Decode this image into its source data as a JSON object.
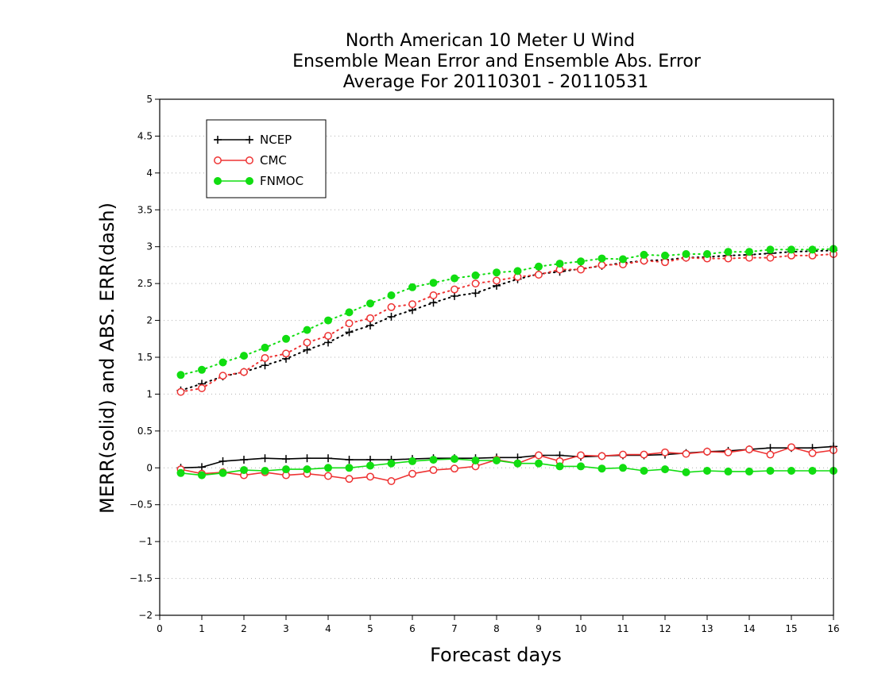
{
  "chart_data": {
    "type": "line",
    "title_lines": [
      "North American 10 Meter U Wind",
      "Ensemble Mean Error and Ensemble Abs. Error",
      "Average For 20110301 - 20110531"
    ],
    "xlabel": "Forecast days",
    "ylabel": "MERR(solid) and ABS. ERR(dash)",
    "xlim": [
      0,
      16
    ],
    "ylim": [
      -2,
      5
    ],
    "xticks": [
      0,
      1,
      2,
      3,
      4,
      5,
      6,
      7,
      8,
      9,
      10,
      11,
      12,
      13,
      14,
      15,
      16
    ],
    "xtick_labels": [
      "0",
      "1",
      "2",
      "3",
      "4",
      "5",
      "6",
      "7",
      "8",
      "9",
      "10",
      "11",
      "12",
      "13",
      "14",
      "15",
      "16"
    ],
    "yticks": [
      -2,
      -1.5,
      -1,
      -0.5,
      0,
      0.5,
      1,
      1.5,
      2,
      2.5,
      3,
      3.5,
      4,
      4.5,
      5
    ],
    "ytick_labels": [
      "−2",
      "−1.5",
      "−1",
      "−0.5",
      "0",
      "0.5",
      "1",
      "1.5",
      "2",
      "2.5",
      "3",
      "3.5",
      "4",
      "4.5",
      "5"
    ],
    "grid": true,
    "legend_position": "top-left",
    "x": [
      0.5,
      1,
      1.5,
      2,
      2.5,
      3,
      3.5,
      4,
      4.5,
      5,
      5.5,
      6,
      6.5,
      7,
      7.5,
      8,
      8.5,
      9,
      9.5,
      10,
      10.5,
      11,
      11.5,
      12,
      12.5,
      13,
      13.5,
      14,
      14.5,
      15,
      15.5,
      16
    ],
    "series": [
      {
        "name": "NCEP",
        "color": "#000000",
        "marker": "plus",
        "merr": [
          0.0,
          0.01,
          0.09,
          0.11,
          0.13,
          0.12,
          0.13,
          0.13,
          0.11,
          0.11,
          0.11,
          0.12,
          0.13,
          0.13,
          0.13,
          0.14,
          0.14,
          0.17,
          0.17,
          0.15,
          0.16,
          0.17,
          0.17,
          0.18,
          0.2,
          0.22,
          0.23,
          0.25,
          0.27,
          0.27,
          0.27,
          0.29
        ],
        "abs_err": [
          1.05,
          1.14,
          1.24,
          1.3,
          1.39,
          1.48,
          1.6,
          1.7,
          1.84,
          1.93,
          2.05,
          2.14,
          2.24,
          2.33,
          2.37,
          2.47,
          2.56,
          2.63,
          2.66,
          2.7,
          2.74,
          2.78,
          2.81,
          2.82,
          2.85,
          2.86,
          2.88,
          2.89,
          2.91,
          2.93,
          2.94,
          2.95
        ]
      },
      {
        "name": "CMC",
        "color": "#ee3333",
        "marker": "open-circle",
        "merr": [
          -0.02,
          -0.08,
          -0.06,
          -0.1,
          -0.06,
          -0.1,
          -0.08,
          -0.11,
          -0.15,
          -0.12,
          -0.18,
          -0.08,
          -0.03,
          -0.01,
          0.02,
          0.11,
          0.06,
          0.17,
          0.09,
          0.17,
          0.16,
          0.18,
          0.18,
          0.21,
          0.19,
          0.22,
          0.21,
          0.25,
          0.18,
          0.28,
          0.2,
          0.24
        ],
        "abs_err": [
          1.03,
          1.08,
          1.25,
          1.3,
          1.49,
          1.55,
          1.7,
          1.79,
          1.96,
          2.03,
          2.18,
          2.22,
          2.34,
          2.42,
          2.5,
          2.54,
          2.59,
          2.62,
          2.69,
          2.69,
          2.75,
          2.76,
          2.81,
          2.79,
          2.85,
          2.84,
          2.84,
          2.85,
          2.85,
          2.88,
          2.88,
          2.9
        ]
      },
      {
        "name": "FNMOC",
        "color": "#11dd11",
        "marker": "filled-circle",
        "merr": [
          -0.07,
          -0.1,
          -0.07,
          -0.03,
          -0.04,
          -0.02,
          -0.02,
          0.0,
          0.0,
          0.03,
          0.06,
          0.09,
          0.11,
          0.12,
          0.1,
          0.1,
          0.06,
          0.06,
          0.02,
          0.02,
          -0.01,
          0.0,
          -0.04,
          -0.02,
          -0.06,
          -0.04,
          -0.05,
          -0.05,
          -0.04,
          -0.04,
          -0.04,
          -0.04
        ],
        "abs_err": [
          1.26,
          1.33,
          1.43,
          1.52,
          1.63,
          1.75,
          1.87,
          2.0,
          2.11,
          2.23,
          2.34,
          2.45,
          2.51,
          2.57,
          2.61,
          2.65,
          2.67,
          2.73,
          2.77,
          2.8,
          2.84,
          2.83,
          2.89,
          2.88,
          2.9,
          2.9,
          2.93,
          2.93,
          2.96,
          2.96,
          2.96,
          2.97
        ]
      }
    ]
  }
}
